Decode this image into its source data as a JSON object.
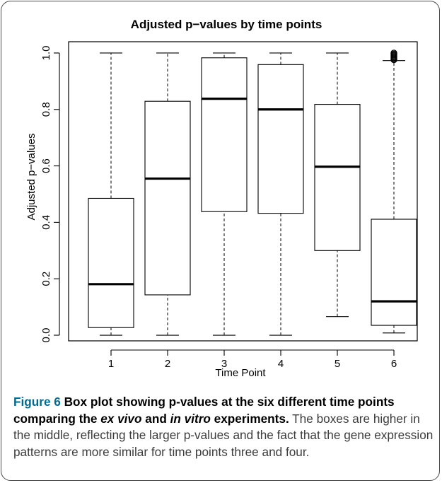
{
  "chart_data": {
    "type": "boxplot",
    "title": "Adjusted p−values by time points",
    "xlabel": "Time Point",
    "ylabel": "Adjusted p−values",
    "ylim": [
      -0.02,
      1.04
    ],
    "yticks": [
      "0.0",
      "0.2",
      "0.4",
      "0.6",
      "0.8",
      "1.0"
    ],
    "categories": [
      "1",
      "2",
      "3",
      "4",
      "5",
      "6"
    ],
    "boxes": [
      {
        "whisker_low": 0.0,
        "q1": 0.027,
        "median": 0.181,
        "q3": 0.485,
        "whisker_high": 1.0,
        "outliers": []
      },
      {
        "whisker_low": 0.0,
        "q1": 0.143,
        "median": 0.555,
        "q3": 0.829,
        "whisker_high": 1.0,
        "outliers": []
      },
      {
        "whisker_low": 0.0,
        "q1": 0.438,
        "median": 0.838,
        "q3": 0.983,
        "whisker_high": 1.0,
        "outliers": []
      },
      {
        "whisker_low": 0.0,
        "q1": 0.432,
        "median": 0.8,
        "q3": 0.959,
        "whisker_high": 1.0,
        "outliers": []
      },
      {
        "whisker_low": 0.066,
        "q1": 0.3,
        "median": 0.597,
        "q3": 0.818,
        "whisker_high": 1.0,
        "outliers": []
      },
      {
        "whisker_low": 0.008,
        "q1": 0.035,
        "median": 0.12,
        "q3": 0.411,
        "whisker_high": 0.973,
        "outliers": [
          0.976,
          0.98,
          0.984,
          0.988,
          0.992,
          0.996,
          1.0
        ]
      }
    ]
  },
  "caption": {
    "figure_label": "Figure 6",
    "bold_1": " Box plot showing p-values at the six different time points comparing the ",
    "italic_1": "ex vivo",
    "bold_2": " and ",
    "italic_2": "in vitro",
    "bold_3": " experiments.",
    "body": " The boxes are higher in the middle, reflecting the larger p-values and the fact that the gene expression patterns are more similar for time points three and four."
  }
}
